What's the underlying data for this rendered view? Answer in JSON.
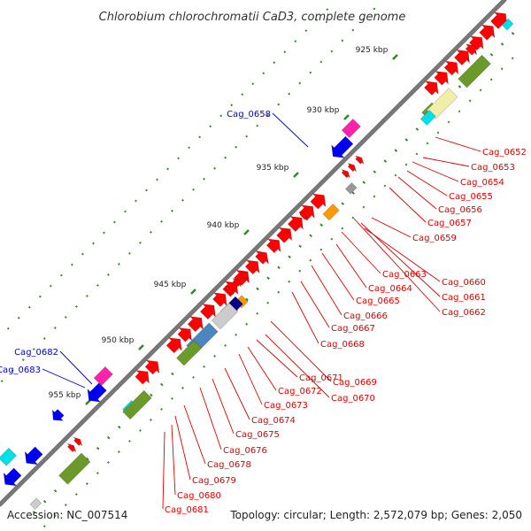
{
  "title": "Chlorobium chlorochromatii CaD3, complete genome",
  "footer": {
    "accession": "Accession: NC_007514",
    "stats": "Topology: circular; Length: 2,572,079 bp; Genes: 2,050"
  },
  "colors": {
    "backbone": "#909090",
    "tick": "#2e8b22",
    "label_red": "#dd0000",
    "label_blue": "#0000cc",
    "red": "#ff0000",
    "blue": "#0000ee",
    "magenta": "#ff22aa",
    "cyan": "#00e0e8",
    "olive": "#6b9a2a",
    "orange": "#ff9900",
    "gray": "#999999",
    "navy": "#000088",
    "steel": "#4a86c0",
    "yellow": "#f2eeaa",
    "lightgray": "#cccccc"
  },
  "kbp_ticks": [
    "925 kbp",
    "930 kbp",
    "935 kbp",
    "940 kbp",
    "945 kbp",
    "950 kbp",
    "955 kbp"
  ],
  "genes_right": [
    "Cag_0652",
    "Cag_0653",
    "Cag_0654",
    "Cag_0655",
    "Cag_0656",
    "Cag_0657",
    "Cag_0659",
    "Cag_0660",
    "Cag_0661",
    "Cag_0662",
    "Cag_0663",
    "Cag_0664",
    "Cag_0665",
    "Cag_0666",
    "Cag_0667",
    "Cag_0668",
    "Cag_0669",
    "Cag_0670",
    "Cag_0671",
    "Cag_0672",
    "Cag_0673",
    "Cag_0674",
    "Cag_0675",
    "Cag_0676",
    "Cag_0678",
    "Cag_0679",
    "Cag_0680",
    "Cag_0681"
  ],
  "genes_left": [
    "Cag_0658",
    "Cag_0682",
    "Cag_0683"
  ]
}
